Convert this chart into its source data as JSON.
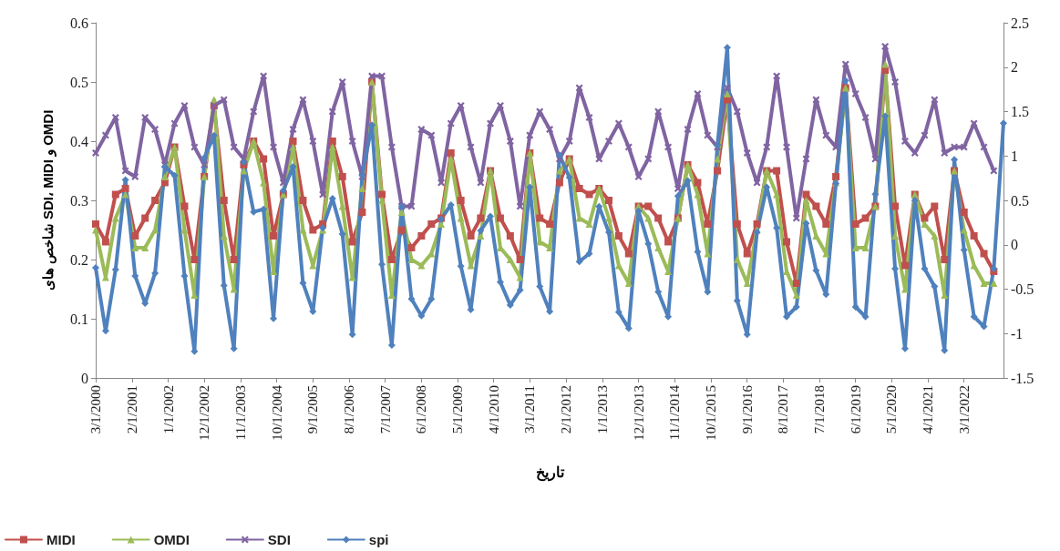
{
  "chart_data": {
    "type": "line",
    "xlabel": "تاریخ",
    "ylabel": "شاخص های SDI، MIDI و OMDI",
    "x": [
      "2000-03",
      "2000-06",
      "2000-09",
      "2000-12",
      "2001-03",
      "2001-06",
      "2001-09",
      "2001-12",
      "2002-03",
      "2002-06",
      "2002-09",
      "2002-12",
      "2003-03",
      "2003-06",
      "2003-09",
      "2003-12",
      "2004-03",
      "2004-06",
      "2004-09",
      "2004-12",
      "2005-03",
      "2005-06",
      "2005-09",
      "2005-12",
      "2006-03",
      "2006-06",
      "2006-09",
      "2006-12",
      "2007-03",
      "2007-06",
      "2007-09",
      "2007-12",
      "2008-03",
      "2008-06",
      "2008-09",
      "2008-12",
      "2009-03",
      "2009-06",
      "2009-09",
      "2009-12",
      "2010-03",
      "2010-06",
      "2010-09",
      "2010-12",
      "2011-03",
      "2011-06",
      "2011-09",
      "2011-12",
      "2012-03",
      "2012-06",
      "2012-09",
      "2012-12",
      "2013-03",
      "2013-06",
      "2013-09",
      "2013-12",
      "2014-03",
      "2014-06",
      "2014-09",
      "2014-12",
      "2015-03",
      "2015-06",
      "2015-09",
      "2015-12",
      "2016-03",
      "2016-06",
      "2016-09",
      "2016-12",
      "2017-03",
      "2017-06",
      "2017-09",
      "2017-12",
      "2018-03",
      "2018-06",
      "2018-09",
      "2018-12",
      "2019-03",
      "2019-06",
      "2019-09",
      "2019-12",
      "2020-03",
      "2020-06",
      "2020-09",
      "2020-12",
      "2021-03",
      "2021-06",
      "2021-09",
      "2021-12",
      "2022-03",
      "2022-06",
      "2022-09",
      "2022-12",
      "2023-03"
    ],
    "xlim": [
      "2000-03-01",
      "2023-03-01"
    ],
    "xticks": [
      {
        "value": "2000-03-01",
        "label": "3/1/2000"
      },
      {
        "value": "2001-02-01",
        "label": "2/1/2001"
      },
      {
        "value": "2002-01-01",
        "label": "1/1/2002"
      },
      {
        "value": "2002-12-01",
        "label": "12/1/2002"
      },
      {
        "value": "2003-11-01",
        "label": "11/1/2003"
      },
      {
        "value": "2004-10-01",
        "label": "10/1/2004"
      },
      {
        "value": "2005-09-01",
        "label": "9/1/2005"
      },
      {
        "value": "2006-08-01",
        "label": "8/1/2006"
      },
      {
        "value": "2007-07-01",
        "label": "7/1/2007"
      },
      {
        "value": "2008-06-01",
        "label": "6/1/2008"
      },
      {
        "value": "2009-05-01",
        "label": "5/1/2009"
      },
      {
        "value": "2010-04-01",
        "label": "4/1/2010"
      },
      {
        "value": "2011-03-01",
        "label": "3/1/2011"
      },
      {
        "value": "2012-02-01",
        "label": "2/1/2012"
      },
      {
        "value": "2013-01-01",
        "label": "1/1/2013"
      },
      {
        "value": "2013-12-01",
        "label": "12/1/2013"
      },
      {
        "value": "2014-11-01",
        "label": "11/1/2014"
      },
      {
        "value": "2015-10-01",
        "label": "10/1/2015"
      },
      {
        "value": "2016-09-01",
        "label": "9/1/2016"
      },
      {
        "value": "2017-08-01",
        "label": "8/1/2017"
      },
      {
        "value": "2018-07-01",
        "label": "7/1/2018"
      },
      {
        "value": "2019-06-01",
        "label": "6/1/2019"
      },
      {
        "value": "2020-05-01",
        "label": "5/1/2020"
      },
      {
        "value": "2021-04-01",
        "label": "4/1/2021"
      },
      {
        "value": "2022-03-01",
        "label": "3/1/2022"
      }
    ],
    "ylim": [
      0,
      0.6
    ],
    "yticks": [
      0,
      0.1,
      0.2,
      0.3,
      0.4,
      0.5,
      0.6
    ],
    "y2lim": [
      -1.5,
      2.5
    ],
    "y2ticks": [
      -1.5,
      -1,
      -0.5,
      0,
      0.5,
      1,
      1.5,
      2,
      2.5
    ],
    "grid": false,
    "legend": "bottom left",
    "line_style": "solid",
    "series": [
      {
        "name": "MIDI",
        "color": "#c0504d",
        "marker": "square",
        "values": [
          0.26,
          0.23,
          0.31,
          0.32,
          0.24,
          0.27,
          0.3,
          0.33,
          0.39,
          0.29,
          0.2,
          0.34,
          0.46,
          0.3,
          0.2,
          0.36,
          0.4,
          0.37,
          0.24,
          0.31,
          0.4,
          0.3,
          0.25,
          0.26,
          0.4,
          0.34,
          0.23,
          0.28,
          0.5,
          0.31,
          0.2,
          0.25,
          0.22,
          0.24,
          0.26,
          0.27,
          0.38,
          0.3,
          0.24,
          0.27,
          0.35,
          0.27,
          0.24,
          0.2,
          0.38,
          0.27,
          0.26,
          0.33,
          0.37,
          0.32,
          0.31,
          0.32,
          0.3,
          0.24,
          0.21,
          0.29,
          0.29,
          0.27,
          0.23,
          0.27,
          0.36,
          0.33,
          0.26,
          0.35,
          0.47,
          0.26,
          0.21,
          0.26,
          0.35,
          0.35,
          0.23,
          0.16,
          0.31,
          0.29,
          0.26,
          0.34,
          0.49,
          0.26,
          0.27,
          0.29,
          0.52,
          0.29,
          0.19,
          0.31,
          0.27,
          0.29,
          0.2,
          0.35,
          0.28,
          0.24,
          0.21,
          0.18,
          null
        ]
      },
      {
        "name": "OMDI",
        "color": "#9bbb59",
        "marker": "triangle",
        "values": [
          0.25,
          0.17,
          0.27,
          0.31,
          0.22,
          0.22,
          0.25,
          0.34,
          0.39,
          0.25,
          0.14,
          0.34,
          0.47,
          0.24,
          0.15,
          0.35,
          0.4,
          0.33,
          0.18,
          0.31,
          0.39,
          0.25,
          0.19,
          0.25,
          0.39,
          0.29,
          0.17,
          0.32,
          0.5,
          0.3,
          0.14,
          0.28,
          0.2,
          0.19,
          0.21,
          0.26,
          0.37,
          0.27,
          0.19,
          0.24,
          0.35,
          0.22,
          0.2,
          0.17,
          0.38,
          0.23,
          0.22,
          0.35,
          0.37,
          0.27,
          0.26,
          0.32,
          0.27,
          0.19,
          0.16,
          0.29,
          0.27,
          0.22,
          0.18,
          0.27,
          0.36,
          0.31,
          0.21,
          0.37,
          0.48,
          0.2,
          0.16,
          0.25,
          0.35,
          0.31,
          0.18,
          0.14,
          0.3,
          0.24,
          0.21,
          0.33,
          0.49,
          0.22,
          0.22,
          0.29,
          0.53,
          0.24,
          0.15,
          0.31,
          0.26,
          0.24,
          0.14,
          0.35,
          0.25,
          0.19,
          0.16,
          0.16,
          null
        ]
      },
      {
        "name": "SDI",
        "color": "#8064a2",
        "marker": "cross",
        "values": [
          0.38,
          0.41,
          0.44,
          0.35,
          0.34,
          0.44,
          0.42,
          0.36,
          0.43,
          0.46,
          0.39,
          0.36,
          0.46,
          0.47,
          0.39,
          0.37,
          0.45,
          0.51,
          0.39,
          0.33,
          0.42,
          0.47,
          0.4,
          0.31,
          0.45,
          0.5,
          0.4,
          0.34,
          0.51,
          0.51,
          0.39,
          0.29,
          0.29,
          0.42,
          0.41,
          0.33,
          0.43,
          0.46,
          0.39,
          0.33,
          0.43,
          0.46,
          0.4,
          0.29,
          0.41,
          0.45,
          0.42,
          0.37,
          0.4,
          0.49,
          0.44,
          0.37,
          0.4,
          0.43,
          0.39,
          0.34,
          0.37,
          0.45,
          0.39,
          0.32,
          0.42,
          0.48,
          0.41,
          0.39,
          0.49,
          0.45,
          0.38,
          0.33,
          0.39,
          0.51,
          0.39,
          0.27,
          0.37,
          0.47,
          0.41,
          0.39,
          0.53,
          0.48,
          0.44,
          0.37,
          0.56,
          0.5,
          0.4,
          0.38,
          0.41,
          0.47,
          0.38,
          0.39,
          0.39,
          0.43,
          0.39,
          0.35,
          null
        ]
      },
      {
        "name": "spi",
        "color": "#4f81bd",
        "marker": "diamond",
        "axis": "y2",
        "values": [
          -0.26,
          -0.97,
          -0.28,
          0.73,
          -0.35,
          -0.66,
          -0.32,
          0.88,
          0.78,
          -0.35,
          -1.2,
          0.98,
          1.23,
          -0.46,
          -1.17,
          0.93,
          0.37,
          0.4,
          -0.83,
          0.61,
          0.88,
          -0.43,
          -0.75,
          0.19,
          0.52,
          0.12,
          -1.01,
          0.78,
          1.35,
          -0.22,
          -1.13,
          0.43,
          -0.61,
          -0.8,
          -0.61,
          0.29,
          0.45,
          -0.24,
          -0.73,
          0.16,
          0.32,
          -0.42,
          -0.68,
          -0.51,
          0.65,
          -0.47,
          -0.75,
          1.01,
          0.76,
          -0.19,
          -0.1,
          0.43,
          0.14,
          -0.76,
          -0.94,
          0.38,
          0.01,
          -0.53,
          -0.81,
          0.55,
          0.72,
          -0.08,
          -0.53,
          1.12,
          2.22,
          -0.63,
          -1.01,
          0.14,
          0.65,
          0.19,
          -0.81,
          -0.7,
          0.24,
          -0.29,
          -0.56,
          0.69,
          1.85,
          -0.7,
          -0.81,
          0.57,
          1.45,
          -0.27,
          -1.17,
          0.5,
          -0.27,
          -0.47,
          -1.19,
          0.96,
          -0.06,
          -0.81,
          -0.92,
          -0.27,
          1.37
        ]
      }
    ]
  }
}
